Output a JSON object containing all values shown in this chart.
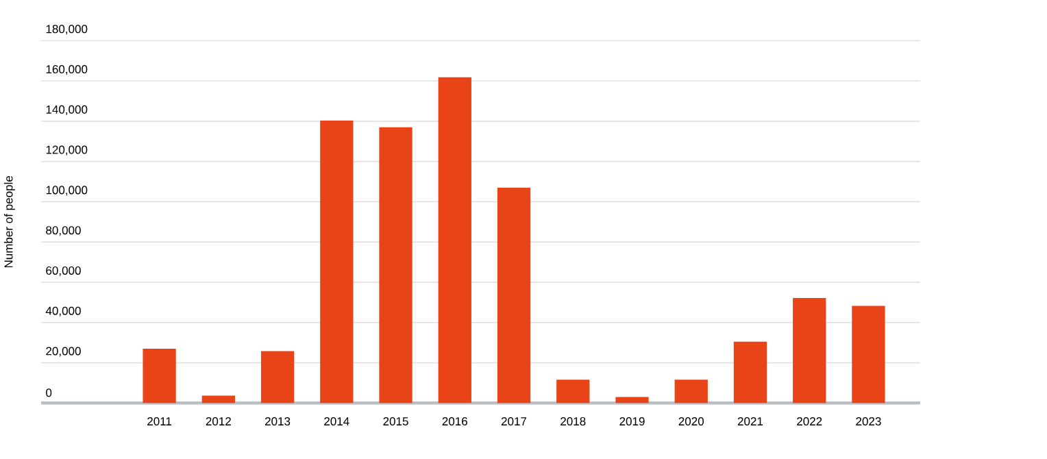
{
  "chart_data": {
    "type": "bar",
    "ylabel": "Number of people",
    "categories": [
      "2011",
      "2012",
      "2013",
      "2014",
      "2015",
      "2016",
      "2017",
      "2018",
      "2019",
      "2020",
      "2021",
      "2022",
      "2023"
    ],
    "values": [
      27000,
      3700,
      25800,
      140300,
      137000,
      161800,
      107000,
      11600,
      3000,
      11600,
      30500,
      52200,
      48300
    ],
    "color": "#e84418",
    "ylim": [
      0,
      180000
    ],
    "yticks": [
      0,
      {
        "value": 20000,
        "label": "20,000"
      },
      {
        "value": 40000,
        "label": "40,000"
      },
      {
        "value": 60000,
        "label": "60,000"
      },
      {
        "value": 80000,
        "label": "80,000"
      },
      {
        "value": 100000,
        "label": "100,000"
      },
      {
        "value": 120000,
        "label": "120,000"
      },
      {
        "value": 140000,
        "label": "140,000"
      },
      {
        "value": 160000,
        "label": "160,000"
      },
      {
        "value": 180000,
        "label": "180,000"
      }
    ],
    "grid": "y"
  }
}
